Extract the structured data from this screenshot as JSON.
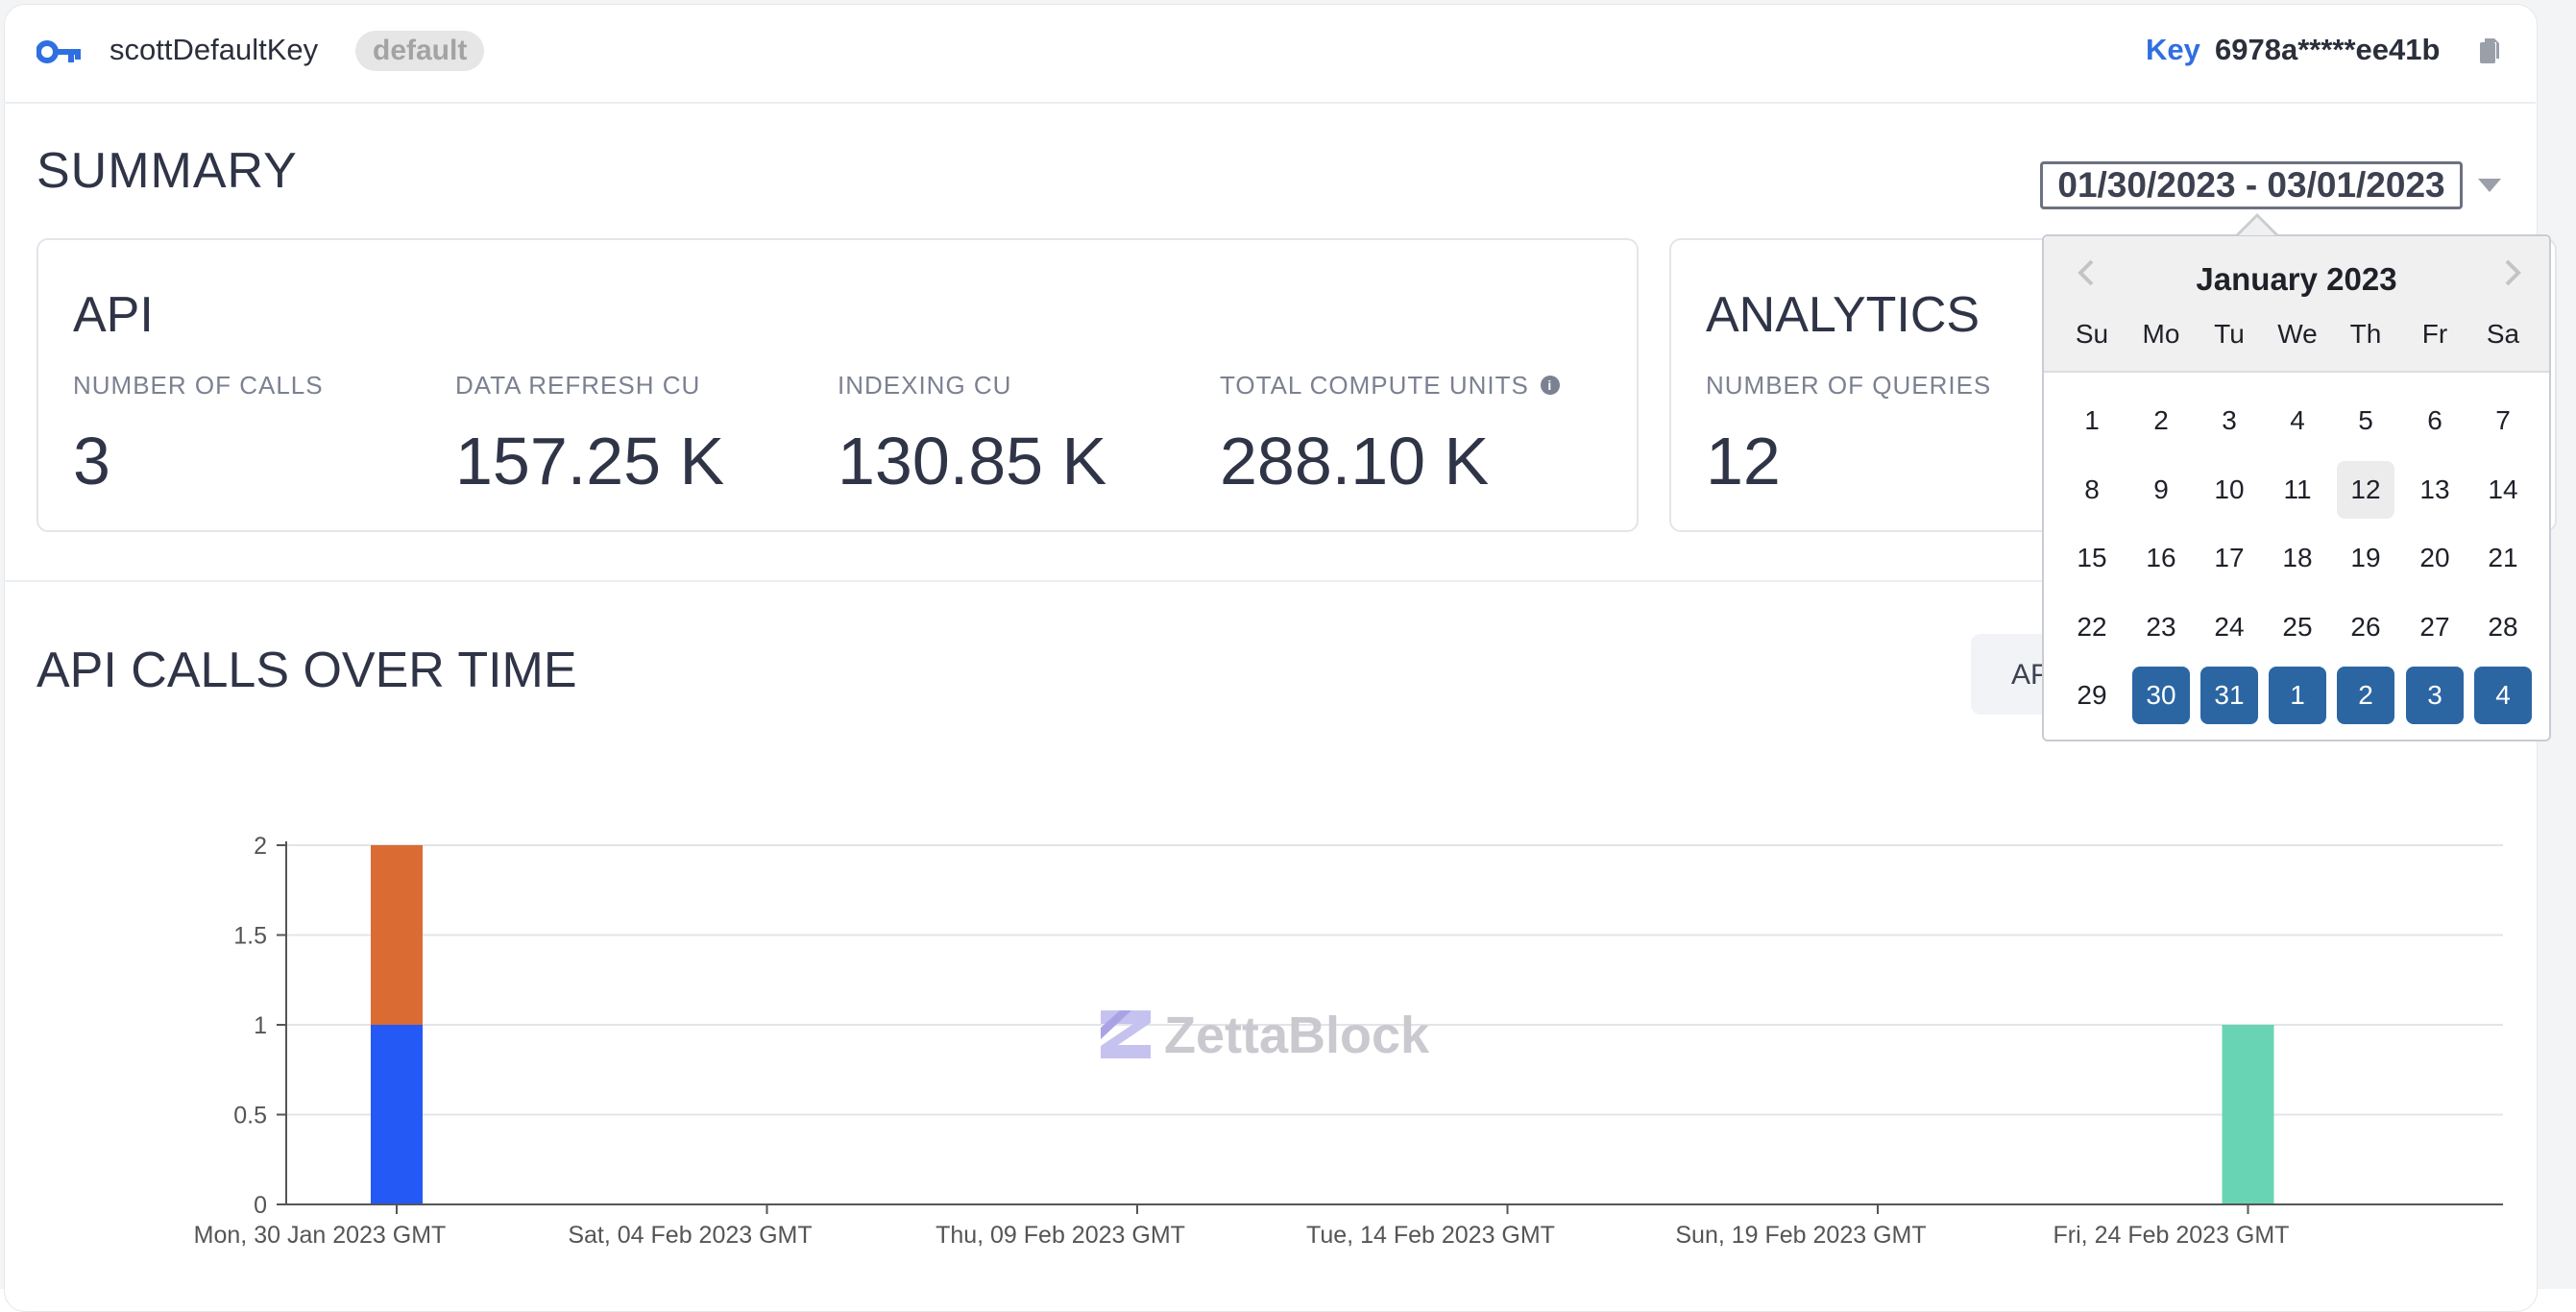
{
  "header": {
    "key_name": "scottDefaultKey",
    "badge": "default",
    "key_label": "Key",
    "key_value": "6978a*****ee41b",
    "icons": [
      "key-icon",
      "copy-icon"
    ]
  },
  "summary": {
    "title": "SUMMARY",
    "date_range": "01/30/2023 - 03/01/2023",
    "api": {
      "title": "API",
      "metrics": [
        {
          "label": "NUMBER OF CALLS",
          "value": "3"
        },
        {
          "label": "DATA REFRESH CU",
          "value": "157.25 K"
        },
        {
          "label": "INDEXING CU",
          "value": "130.85 K"
        },
        {
          "label": "TOTAL COMPUTE UNITS",
          "value": "288.10 K"
        }
      ]
    },
    "analytics": {
      "title": "ANALYTICS",
      "metrics": [
        {
          "label": "NUMBER OF QUERIES",
          "value": "12"
        }
      ]
    }
  },
  "calendar": {
    "month": "January 2023",
    "weekdays": [
      "Su",
      "Mo",
      "Tu",
      "We",
      "Th",
      "Fr",
      "Sa"
    ],
    "weeks": [
      [
        "1",
        "2",
        "3",
        "4",
        "5",
        "6",
        "7"
      ],
      [
        "8",
        "9",
        "10",
        "11",
        "12",
        "13",
        "14"
      ],
      [
        "15",
        "16",
        "17",
        "18",
        "19",
        "20",
        "21"
      ],
      [
        "22",
        "23",
        "24",
        "25",
        "26",
        "27",
        "28"
      ],
      [
        "29",
        "30",
        "31",
        "1",
        "2",
        "3",
        "4"
      ]
    ],
    "selected": [
      "30",
      "31",
      "1",
      "2",
      "3",
      "4"
    ],
    "highlighted": "12",
    "selected_color": "#2b66a3"
  },
  "api_calls": {
    "title": "API CALLS OVER TIME",
    "toggle_label": "AP",
    "watermark": "ZettaBlock"
  },
  "chart_data": {
    "type": "bar",
    "stacked": true,
    "x_start": "Mon, 30 Jan 2023 GMT",
    "x_ticks": [
      "Mon, 30 Jan 2023 GMT",
      "Sat, 04 Feb 2023 GMT",
      "Thu, 09 Feb 2023 GMT",
      "Tue, 14 Feb 2023 GMT",
      "Sun, 19 Feb 2023 GMT",
      "Fri, 24 Feb 2023 GMT"
    ],
    "y_ticks": [
      "0",
      "0.5",
      "1",
      "1.5",
      "2"
    ],
    "ylim": [
      0,
      2
    ],
    "bars": [
      {
        "date": "Mon, 30 Jan 2023 GMT",
        "segments": [
          {
            "value": 1,
            "color": "#2459f5"
          },
          {
            "value": 1,
            "color": "#d96b33"
          }
        ]
      },
      {
        "date": "Fri, 24 Feb 2023 GMT",
        "segments": [
          {
            "value": 1,
            "color": "#69d4b4"
          }
        ]
      }
    ],
    "grid": true
  }
}
